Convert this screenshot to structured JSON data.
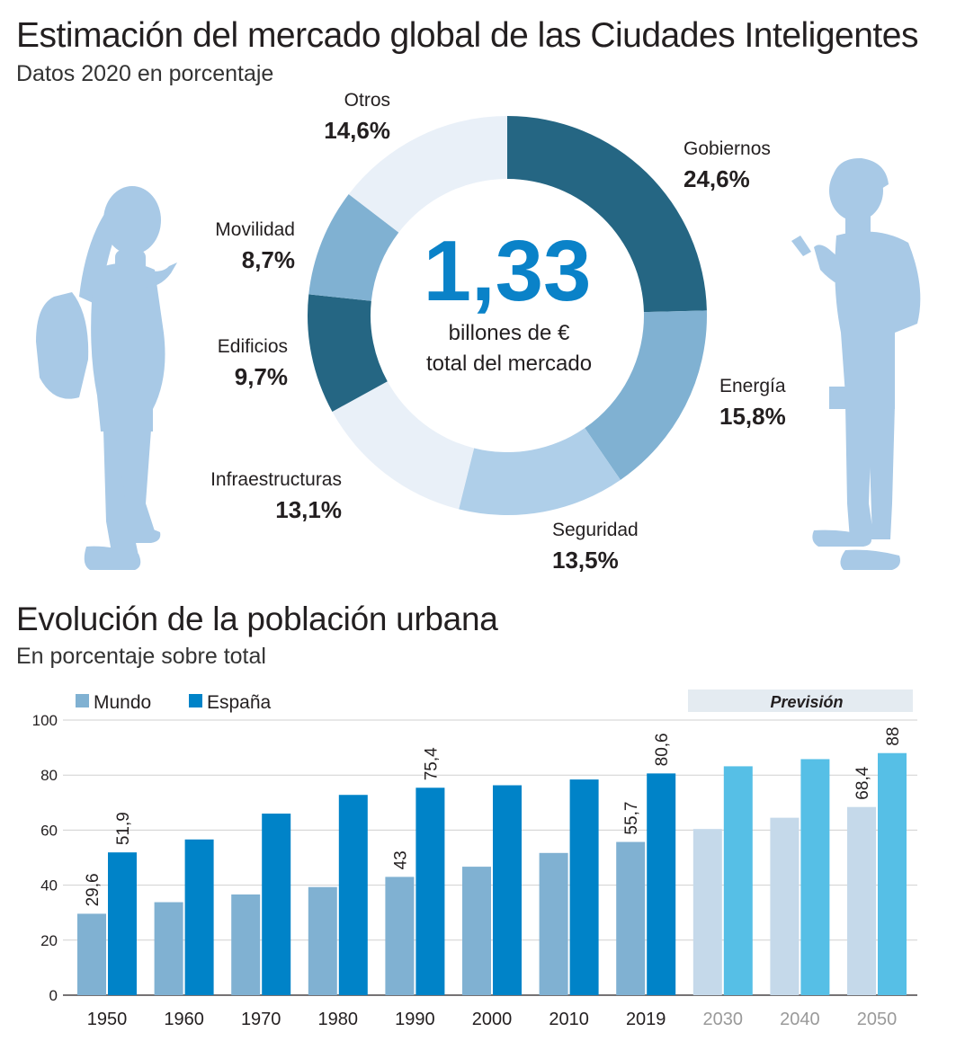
{
  "header": {
    "title": "Estimación del mercado global de las Ciudades Inteligentes",
    "subtitle": "Datos 2020 en porcentaje"
  },
  "donut": {
    "center_value": "1,33",
    "center_line1": "billones de €",
    "center_line2": "total del mercado"
  },
  "section2": {
    "title": "Evolución de la población urbana",
    "subtitle": "En porcentaje sobre total"
  },
  "colors": {
    "dark_blue": "#256683",
    "mid_blue": "#80b1d2",
    "light_blue": "#afcfe9",
    "pale_blue": "#e9f0f8",
    "spain": "#0083c8",
    "spain_forecast": "#56bfe6",
    "world_forecast": "#c5d9ea",
    "silhouette": "#a8c9e6"
  },
  "chart_data": [
    {
      "type": "pie",
      "title": "Estimación del mercado global de las Ciudades Inteligentes",
      "subtitle": "Datos 2020 en porcentaje",
      "slices": [
        {
          "name": "Gobiernos",
          "value": 24.6,
          "label": "24,6%",
          "color": "#256683"
        },
        {
          "name": "Energía",
          "value": 15.8,
          "label": "15,8%",
          "color": "#80b1d2"
        },
        {
          "name": "Seguridad",
          "value": 13.5,
          "label": "13,5%",
          "color": "#afcfe9"
        },
        {
          "name": "Infraestructuras",
          "value": 13.1,
          "label": "13,1%",
          "color": "#e9f0f8"
        },
        {
          "name": "Edificios",
          "value": 9.7,
          "label": "9,7%",
          "color": "#256683"
        },
        {
          "name": "Movilidad",
          "value": 8.7,
          "label": "8,7%",
          "color": "#80b1d2"
        },
        {
          "name": "Otros",
          "value": 14.6,
          "label": "14,6%",
          "color": "#e9f0f8"
        }
      ]
    },
    {
      "type": "bar",
      "title": "Evolución de la población urbana",
      "subtitle": "En porcentaje sobre total",
      "categories": [
        "1950",
        "1960",
        "1970",
        "1980",
        "1990",
        "2000",
        "2010",
        "2019",
        "2030",
        "2040",
        "2050"
      ],
      "forecast_from": "2030",
      "forecast_label": "Previsión",
      "ylim": [
        0,
        100
      ],
      "yticks": [
        0,
        20,
        40,
        60,
        80,
        100
      ],
      "grid": true,
      "legend_position": "top-left",
      "series": [
        {
          "name": "Mundo",
          "values": [
            29.6,
            33.8,
            36.6,
            39.3,
            43,
            46.7,
            51.7,
            55.7,
            60.4,
            64.5,
            68.4
          ],
          "labels": [
            "29,6",
            "",
            "",
            "",
            "43",
            "",
            "",
            "55,7",
            "",
            "",
            "68,4"
          ]
        },
        {
          "name": "España",
          "values": [
            51.9,
            56.6,
            66,
            72.8,
            75.4,
            76.3,
            78.4,
            80.6,
            83.2,
            85.8,
            88
          ],
          "labels": [
            "51,9",
            "",
            "",
            "",
            "75,4",
            "",
            "",
            "80,6",
            "",
            "",
            "88"
          ]
        }
      ]
    }
  ]
}
